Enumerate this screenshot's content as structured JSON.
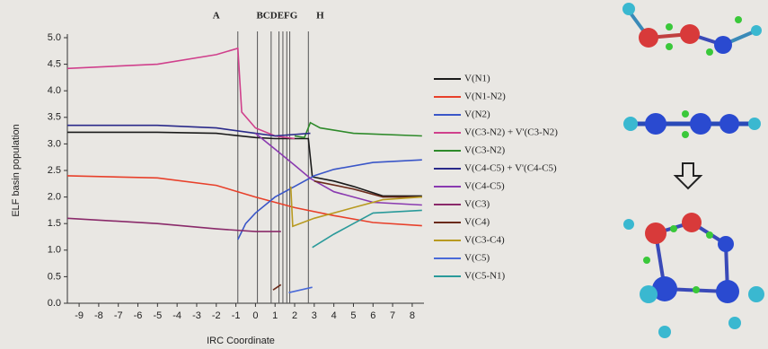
{
  "chart_data": {
    "type": "line",
    "x_label": "IRC Coordinate",
    "y_label": "ELF basin population",
    "xlim": [
      -9.6,
      8.6
    ],
    "ylim": [
      0,
      5
    ],
    "xticks": [
      -9,
      -8,
      -7,
      -6,
      -5,
      -4,
      -3,
      -2,
      -1,
      0,
      1,
      2,
      3,
      4,
      5,
      6,
      7,
      8
    ],
    "yticks": [
      {
        "value": 0,
        "label": "0.0"
      },
      {
        "value": 0.5,
        "label": "0.5"
      },
      {
        "value": 1,
        "label": "1.0"
      },
      {
        "value": 1.5,
        "label": "1.5"
      },
      {
        "value": 2,
        "label": "2.0"
      },
      {
        "value": 2.5,
        "label": "2.5"
      },
      {
        "value": 3,
        "label": "3.0"
      },
      {
        "value": 3.5,
        "label": "3.5"
      },
      {
        "value": 4,
        "label": "4.0"
      },
      {
        "value": 4.5,
        "label": "4.5"
      },
      {
        "value": 5,
        "label": "5.0"
      }
    ],
    "vlines": [
      -0.9,
      0.1,
      0.8,
      1.2,
      1.4,
      1.6,
      1.75,
      2.7
    ],
    "region_labels": [
      {
        "text": "A",
        "x": -2
      },
      {
        "text": "BCDEFG",
        "x": 1.1
      },
      {
        "text": "H",
        "x": 3.3
      }
    ],
    "series": [
      {
        "name": "V(N1)",
        "color": "#1a1a1a",
        "x": [
          -9.6,
          -5,
          -2,
          0,
          1,
          2.7,
          2.9,
          4,
          5,
          6.5,
          8.5
        ],
        "values": [
          3.22,
          3.22,
          3.2,
          3.12,
          3.1,
          3.1,
          2.38,
          2.3,
          2.2,
          2.02,
          2.02
        ]
      },
      {
        "name": "V(N1-N2)",
        "color": "#e8402a",
        "x": [
          -9.6,
          -5,
          -2,
          0,
          2,
          4,
          6,
          8.5
        ],
        "values": [
          2.4,
          2.36,
          2.22,
          2.0,
          1.8,
          1.65,
          1.52,
          1.46
        ]
      },
      {
        "name": "V(N2)",
        "color": "#3a56c8",
        "x": [
          -0.9,
          -0.5,
          0,
          1,
          2,
          3,
          4,
          6,
          8.5
        ],
        "values": [
          1.2,
          1.5,
          1.7,
          2.0,
          2.2,
          2.4,
          2.52,
          2.65,
          2.7
        ]
      },
      {
        "name": "V(C3-N2) + V'(C3-N2)",
        "color": "#d0408c",
        "x": [
          -9.6,
          -5,
          -2,
          -0.9,
          -0.7,
          0,
          1,
          2
        ],
        "values": [
          4.42,
          4.5,
          4.68,
          4.8,
          3.6,
          3.3,
          3.15,
          3.1
        ]
      },
      {
        "name": "V(C3-N2)",
        "color": "#2e8a2a",
        "x": [
          2,
          2.5,
          2.8,
          3.3,
          5,
          8.5
        ],
        "values": [
          3.15,
          3.12,
          3.4,
          3.3,
          3.2,
          3.15
        ]
      },
      {
        "name": "V(C4-C5) + V'(C4-C5)",
        "color": "#2a2a8a",
        "x": [
          -9.6,
          -5,
          -2,
          0,
          1,
          2.8
        ],
        "values": [
          3.35,
          3.35,
          3.3,
          3.2,
          3.15,
          3.2
        ]
      },
      {
        "name": "V(C4-C5)",
        "color": "#8a3ab0",
        "x": [
          0,
          1,
          2,
          2.8,
          4,
          6,
          8.5
        ],
        "values": [
          3.2,
          2.9,
          2.6,
          2.35,
          2.1,
          1.9,
          1.85
        ]
      },
      {
        "name": "V(C3)",
        "color": "#8a2a6a",
        "x": [
          -9.6,
          -5,
          -2,
          0,
          1.3
        ],
        "values": [
          1.6,
          1.5,
          1.4,
          1.35,
          1.35
        ]
      },
      {
        "name": "V(C4)",
        "color": "#6a2a1a",
        "x": [
          0.9,
          1.3,
          2,
          3,
          5,
          6.5,
          8.5
        ],
        "values": [
          0.25,
          0.35,
          null,
          2.3,
          2.15,
          2.0,
          2.0
        ]
      },
      {
        "name": "V(C3-C4)",
        "color": "#b89a20",
        "x": [
          1.8,
          1.9,
          3,
          5,
          6.5,
          8.5
        ],
        "values": [
          2.2,
          1.45,
          1.6,
          1.8,
          1.95,
          2.0
        ]
      },
      {
        "name": "V(C5)",
        "color": "#4a6ad8",
        "x": [
          1.7,
          2.9
        ],
        "values": [
          0.2,
          0.3
        ]
      },
      {
        "name": "V(C5-N1)",
        "color": "#2a9a9a",
        "x": [
          2.9,
          4,
          5,
          6,
          8.5
        ],
        "values": [
          1.05,
          1.3,
          1.5,
          1.7,
          1.75
        ]
      }
    ]
  }
}
